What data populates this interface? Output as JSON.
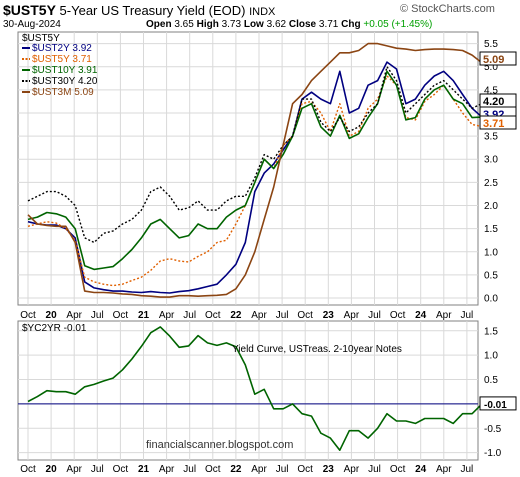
{
  "header": {
    "symbol": "$UST5Y",
    "name": "5-Year US Treasury Yield (EOD)",
    "exchange": "INDX",
    "watermark": "© StockCharts.com",
    "date": "30-Aug-2024",
    "ohlc": {
      "open_label": "Open",
      "open": "3.65",
      "high_label": "High",
      "high": "3.73",
      "low_label": "Low",
      "low": "3.62",
      "close_label": "Close",
      "close": "3.71",
      "chg_label": "Chg",
      "chg": "+0.05 (+1.45%)"
    },
    "chg_color": "#00a000"
  },
  "chart_data": [
    {
      "type": "line",
      "panel": "price",
      "panel_label": "$UST5Y",
      "x_tick_labels": [
        "Oct",
        "20",
        "Apr",
        "Jul",
        "Oct",
        "21",
        "Apr",
        "Jul",
        "Oct",
        "22",
        "Apr",
        "Jul",
        "Oct",
        "23",
        "Apr",
        "Jul",
        "Oct",
        "24",
        "Apr",
        "Jul"
      ],
      "x_range": [
        "2019-09",
        "2024-08"
      ],
      "x_ticks_year_bold": [
        "20",
        "21",
        "22",
        "23",
        "24"
      ],
      "yticks": [
        "0.0",
        "0.5",
        "1.0",
        "1.5",
        "2.0",
        "2.5",
        "3.0",
        "3.5",
        "4.0",
        "4.5",
        "5.0",
        "5.5"
      ],
      "ylim": [
        -0.15,
        5.75
      ],
      "grid": true,
      "legend_position": "top-left",
      "series": [
        {
          "name": "$UST2Y 3.92",
          "last": "3.92",
          "color": "#000080",
          "style": "solid",
          "values": [
            1.65,
            1.6,
            1.58,
            1.58,
            1.5,
            1.3,
            0.35,
            0.22,
            0.18,
            0.15,
            0.15,
            0.13,
            0.12,
            0.14,
            0.12,
            0.11,
            0.14,
            0.16,
            0.2,
            0.25,
            0.3,
            0.5,
            0.73,
            1.2,
            2.3,
            2.7,
            2.9,
            3.2,
            3.5,
            4.3,
            4.45,
            4.3,
            4.2,
            4.9,
            4.0,
            4.1,
            4.6,
            4.7,
            5.1,
            4.95,
            4.2,
            4.3,
            4.6,
            4.8,
            4.9,
            4.7,
            4.4,
            4.1,
            3.92
          ]
        },
        {
          "name": "$UST5Y 3.71",
          "last": "3.71",
          "color": "#e06000",
          "style": "dotted",
          "values": [
            1.55,
            1.6,
            1.65,
            1.62,
            1.5,
            1.25,
            0.45,
            0.35,
            0.3,
            0.27,
            0.3,
            0.38,
            0.45,
            0.6,
            0.8,
            0.85,
            0.8,
            0.78,
            0.9,
            1.0,
            1.2,
            1.25,
            1.6,
            2.0,
            2.5,
            3.0,
            2.8,
            3.3,
            3.5,
            4.2,
            4.25,
            4.0,
            3.6,
            4.2,
            3.5,
            3.6,
            4.1,
            4.3,
            4.8,
            4.6,
            3.9,
            3.85,
            4.25,
            4.4,
            4.6,
            4.3,
            4.0,
            3.75,
            3.71
          ]
        },
        {
          "name": "$UST10Y 3.91",
          "last": "3.91",
          "color": "#006400",
          "style": "solid",
          "values": [
            1.7,
            1.75,
            1.85,
            1.82,
            1.75,
            1.5,
            0.7,
            0.62,
            0.65,
            0.68,
            0.85,
            1.05,
            1.3,
            1.6,
            1.7,
            1.5,
            1.3,
            1.35,
            1.6,
            1.5,
            1.5,
            1.75,
            1.9,
            2.0,
            2.5,
            3.0,
            2.8,
            3.1,
            3.5,
            4.1,
            4.2,
            3.7,
            3.5,
            3.95,
            3.45,
            3.55,
            3.9,
            4.2,
            4.9,
            4.6,
            3.85,
            3.9,
            4.3,
            4.5,
            4.6,
            4.3,
            4.2,
            3.9,
            3.91
          ]
        },
        {
          "name": "$UST30Y 4.20",
          "last": "4.20",
          "color": "#000000",
          "style": "dotted",
          "values": [
            2.1,
            2.2,
            2.3,
            2.3,
            2.2,
            2.0,
            1.3,
            1.2,
            1.4,
            1.45,
            1.6,
            1.7,
            1.9,
            2.3,
            2.4,
            2.2,
            1.9,
            1.95,
            2.1,
            1.9,
            1.9,
            2.1,
            2.2,
            2.2,
            2.6,
            3.1,
            3.0,
            3.3,
            3.5,
            4.3,
            4.3,
            3.8,
            3.6,
            3.9,
            3.6,
            3.7,
            4.0,
            4.2,
            5.0,
            4.7,
            4.0,
            4.2,
            4.4,
            4.6,
            4.7,
            4.5,
            4.3,
            4.1,
            4.2
          ]
        },
        {
          "name": "$UST3M 5.09",
          "last": "5.09",
          "color": "#8b4513",
          "style": "solid",
          "values": [
            1.8,
            1.6,
            1.57,
            1.55,
            1.55,
            1.2,
            0.15,
            0.12,
            0.12,
            0.11,
            0.09,
            0.08,
            0.05,
            0.04,
            0.02,
            0.02,
            0.05,
            0.05,
            0.04,
            0.05,
            0.06,
            0.08,
            0.2,
            0.5,
            1.0,
            1.7,
            2.4,
            3.3,
            4.2,
            4.4,
            4.7,
            4.9,
            5.1,
            5.3,
            5.3,
            5.35,
            5.5,
            5.5,
            5.45,
            5.4,
            5.38,
            5.35,
            5.37,
            5.38,
            5.38,
            5.37,
            5.35,
            5.25,
            5.09
          ]
        }
      ]
    },
    {
      "type": "line",
      "panel": "indicator",
      "panel_label": "$YC2YR -0.01",
      "annotation": "Yield Curve, USTreas. 2-10year Notes",
      "credit": "financialscanner.blogspot.com",
      "last": "-0.01",
      "yticks": [
        "1.5",
        "1.0",
        "0.5",
        "0.0",
        "-0.5",
        "-1.0"
      ],
      "ylim": [
        -1.15,
        1.7
      ],
      "zero_line": true,
      "series": [
        {
          "name": "$YC2YR",
          "color": "#006400",
          "values": [
            0.05,
            0.15,
            0.27,
            0.25,
            0.25,
            0.2,
            0.35,
            0.4,
            0.47,
            0.53,
            0.7,
            0.92,
            1.18,
            1.46,
            1.58,
            1.39,
            1.16,
            1.19,
            1.4,
            1.25,
            1.2,
            1.25,
            1.17,
            0.8,
            0.2,
            0.3,
            -0.1,
            -0.1,
            0.0,
            -0.2,
            -0.25,
            -0.6,
            -0.7,
            -0.95,
            -0.55,
            -0.55,
            -0.7,
            -0.5,
            -0.2,
            -0.35,
            -0.35,
            -0.4,
            -0.3,
            -0.3,
            -0.3,
            -0.4,
            -0.2,
            -0.2,
            -0.01
          ]
        }
      ]
    }
  ]
}
